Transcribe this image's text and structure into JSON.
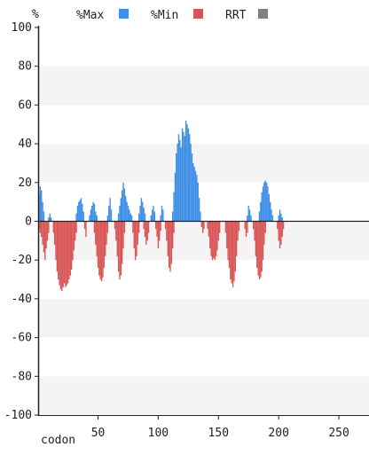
{
  "chart_data": {
    "type": "bar",
    "y_unit_label": "%",
    "xlabel": "codon",
    "ylim": [
      -100,
      100
    ],
    "xlim": [
      1,
      275
    ],
    "y_ticks": [
      100,
      80,
      60,
      40,
      20,
      0,
      -20,
      -40,
      -60,
      -80,
      -100
    ],
    "x_ticks": [
      50,
      100,
      150,
      200,
      250
    ],
    "grid": "alternating horizontal bands",
    "legend": {
      "placement": "top",
      "items": [
        {
          "label": "%Max",
          "color": "#3d8ee6"
        },
        {
          "label": "%Min",
          "color": "#d85555"
        },
        {
          "label": "RRT",
          "color": "#808080"
        }
      ]
    },
    "series": [
      {
        "name": "%Max",
        "color": "#3d8ee6",
        "points": [
          [
            1,
            14
          ],
          [
            2,
            18
          ],
          [
            3,
            16
          ],
          [
            4,
            10
          ],
          [
            5,
            5
          ],
          [
            9,
            2
          ],
          [
            10,
            4
          ],
          [
            11,
            2
          ],
          [
            32,
            4
          ],
          [
            33,
            8
          ],
          [
            34,
            10
          ],
          [
            35,
            11
          ],
          [
            36,
            12
          ],
          [
            37,
            9
          ],
          [
            38,
            5
          ],
          [
            43,
            3
          ],
          [
            44,
            6
          ],
          [
            45,
            8
          ],
          [
            46,
            10
          ],
          [
            47,
            9
          ],
          [
            48,
            5
          ],
          [
            49,
            3
          ],
          [
            58,
            3
          ],
          [
            59,
            8
          ],
          [
            60,
            12
          ],
          [
            61,
            6
          ],
          [
            67,
            4
          ],
          [
            68,
            8
          ],
          [
            69,
            12
          ],
          [
            70,
            16
          ],
          [
            71,
            20
          ],
          [
            72,
            17
          ],
          [
            73,
            13
          ],
          [
            74,
            10
          ],
          [
            75,
            8
          ],
          [
            76,
            6
          ],
          [
            77,
            4
          ],
          [
            78,
            3
          ],
          [
            84,
            4
          ],
          [
            85,
            8
          ],
          [
            86,
            12
          ],
          [
            87,
            10
          ],
          [
            88,
            7
          ],
          [
            89,
            4
          ],
          [
            94,
            3
          ],
          [
            95,
            6
          ],
          [
            96,
            8
          ],
          [
            97,
            5
          ],
          [
            102,
            3
          ],
          [
            103,
            8
          ],
          [
            104,
            6
          ],
          [
            112,
            5
          ],
          [
            113,
            15
          ],
          [
            114,
            25
          ],
          [
            115,
            35
          ],
          [
            116,
            40
          ],
          [
            117,
            45
          ],
          [
            118,
            42
          ],
          [
            119,
            38
          ],
          [
            120,
            48
          ],
          [
            121,
            46
          ],
          [
            122,
            44
          ],
          [
            123,
            52
          ],
          [
            124,
            50
          ],
          [
            125,
            48
          ],
          [
            126,
            45
          ],
          [
            127,
            40
          ],
          [
            128,
            35
          ],
          [
            129,
            30
          ],
          [
            130,
            28
          ],
          [
            131,
            26
          ],
          [
            132,
            24
          ],
          [
            133,
            20
          ],
          [
            134,
            12
          ],
          [
            135,
            5
          ],
          [
            174,
            3
          ],
          [
            175,
            8
          ],
          [
            176,
            6
          ],
          [
            177,
            3
          ],
          [
            184,
            5
          ],
          [
            185,
            10
          ],
          [
            186,
            15
          ],
          [
            187,
            18
          ],
          [
            188,
            20
          ],
          [
            189,
            21
          ],
          [
            190,
            20
          ],
          [
            191,
            18
          ],
          [
            192,
            14
          ],
          [
            193,
            10
          ],
          [
            194,
            6
          ],
          [
            195,
            3
          ],
          [
            200,
            3
          ],
          [
            201,
            6
          ],
          [
            202,
            4
          ],
          [
            203,
            2
          ]
        ]
      },
      {
        "name": "%Min",
        "color": "#d85555",
        "points": [
          [
            1,
            -4
          ],
          [
            2,
            -6
          ],
          [
            3,
            -8
          ],
          [
            4,
            -12
          ],
          [
            5,
            -16
          ],
          [
            6,
            -20
          ],
          [
            7,
            -14
          ],
          [
            8,
            -10
          ],
          [
            9,
            -6
          ],
          [
            13,
            -6
          ],
          [
            14,
            -12
          ],
          [
            15,
            -20
          ],
          [
            16,
            -26
          ],
          [
            17,
            -30
          ],
          [
            18,
            -33
          ],
          [
            19,
            -35
          ],
          [
            20,
            -36
          ],
          [
            21,
            -34
          ],
          [
            22,
            -32
          ],
          [
            23,
            -34
          ],
          [
            24,
            -33
          ],
          [
            25,
            -32
          ],
          [
            26,
            -30
          ],
          [
            27,
            -28
          ],
          [
            28,
            -25
          ],
          [
            29,
            -20
          ],
          [
            30,
            -15
          ],
          [
            31,
            -10
          ],
          [
            32,
            -6
          ],
          [
            39,
            -4
          ],
          [
            40,
            -8
          ],
          [
            47,
            -6
          ],
          [
            48,
            -12
          ],
          [
            49,
            -18
          ],
          [
            50,
            -24
          ],
          [
            51,
            -28
          ],
          [
            52,
            -30
          ],
          [
            53,
            -31
          ],
          [
            54,
            -29
          ],
          [
            55,
            -24
          ],
          [
            56,
            -18
          ],
          [
            57,
            -12
          ],
          [
            58,
            -6
          ],
          [
            64,
            -4
          ],
          [
            65,
            -10
          ],
          [
            66,
            -18
          ],
          [
            67,
            -26
          ],
          [
            68,
            -30
          ],
          [
            69,
            -28
          ],
          [
            70,
            -22
          ],
          [
            71,
            -14
          ],
          [
            72,
            -6
          ],
          [
            79,
            -6
          ],
          [
            80,
            -14
          ],
          [
            81,
            -20
          ],
          [
            82,
            -18
          ],
          [
            83,
            -12
          ],
          [
            84,
            -6
          ],
          [
            88,
            -4
          ],
          [
            89,
            -8
          ],
          [
            90,
            -12
          ],
          [
            91,
            -10
          ],
          [
            92,
            -6
          ],
          [
            98,
            -4
          ],
          [
            99,
            -8
          ],
          [
            100,
            -14
          ],
          [
            101,
            -10
          ],
          [
            102,
            -5
          ],
          [
            106,
            -4
          ],
          [
            107,
            -10
          ],
          [
            108,
            -18
          ],
          [
            109,
            -24
          ],
          [
            110,
            -26
          ],
          [
            111,
            -22
          ],
          [
            112,
            -14
          ],
          [
            113,
            -6
          ],
          [
            136,
            -3
          ],
          [
            137,
            -6
          ],
          [
            138,
            -4
          ],
          [
            141,
            -4
          ],
          [
            142,
            -8
          ],
          [
            143,
            -14
          ],
          [
            144,
            -18
          ],
          [
            145,
            -20
          ],
          [
            146,
            -19
          ],
          [
            147,
            -20
          ],
          [
            148,
            -18
          ],
          [
            149,
            -15
          ],
          [
            150,
            -10
          ],
          [
            151,
            -6
          ],
          [
            156,
            -6
          ],
          [
            157,
            -14
          ],
          [
            158,
            -20
          ],
          [
            159,
            -24
          ],
          [
            160,
            -30
          ],
          [
            161,
            -32
          ],
          [
            162,
            -34
          ],
          [
            163,
            -31
          ],
          [
            164,
            -26
          ],
          [
            165,
            -18
          ],
          [
            166,
            -10
          ],
          [
            167,
            -5
          ],
          [
            172,
            -4
          ],
          [
            173,
            -8
          ],
          [
            174,
            -6
          ],
          [
            179,
            -4
          ],
          [
            180,
            -10
          ],
          [
            181,
            -18
          ],
          [
            182,
            -24
          ],
          [
            183,
            -28
          ],
          [
            184,
            -30
          ],
          [
            185,
            -29
          ],
          [
            186,
            -26
          ],
          [
            187,
            -20
          ],
          [
            188,
            -12
          ],
          [
            189,
            -6
          ],
          [
            199,
            -4
          ],
          [
            200,
            -10
          ],
          [
            201,
            -14
          ],
          [
            202,
            -12
          ],
          [
            203,
            -8
          ],
          [
            204,
            -4
          ]
        ]
      }
    ]
  }
}
